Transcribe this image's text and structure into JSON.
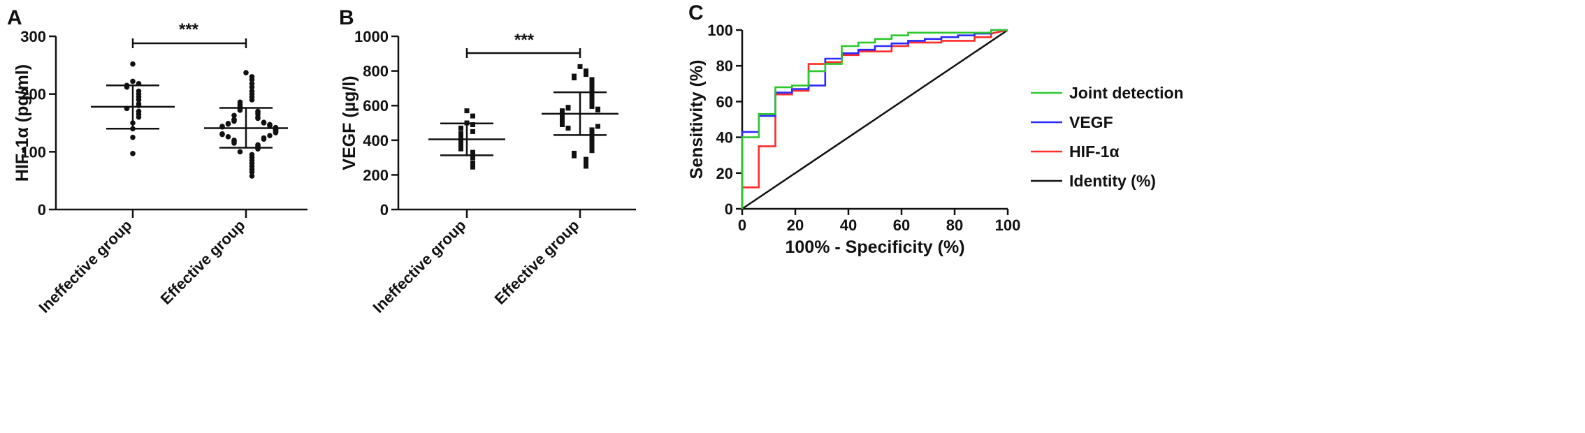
{
  "colors": {
    "axis": "#111111",
    "points": "#111111",
    "joint": "#2ec82e",
    "vegf": "#2a2aff",
    "hif": "#ff2a2a",
    "identity": "#111111"
  },
  "chart_data": [
    {
      "panel": "A",
      "type": "scatter",
      "ylabel": "HIF-1α (pg/ml)",
      "ylim": [
        0,
        300
      ],
      "yticks": [
        0,
        100,
        200,
        300
      ],
      "categories": [
        "Ineffective group",
        "Effective group"
      ],
      "marker": "circle",
      "significance": "***",
      "groups": [
        {
          "name": "Ineffective group",
          "mean": 178,
          "sd_low": 140,
          "sd_high": 215,
          "values": [
            252,
            222,
            218,
            215,
            212,
            205,
            200,
            195,
            190,
            183,
            180,
            175,
            170,
            165,
            160,
            150,
            140,
            125,
            97
          ]
        },
        {
          "name": "Effective group",
          "mean": 141,
          "sd_low": 107,
          "sd_high": 176,
          "values": [
            237,
            230,
            225,
            218,
            212,
            205,
            200,
            195,
            190,
            186,
            182,
            178,
            175,
            172,
            170,
            168,
            165,
            163,
            160,
            158,
            156,
            155,
            153,
            151,
            150,
            149,
            148,
            147,
            146,
            145,
            144,
            143,
            142,
            141,
            140,
            139,
            138,
            137,
            136,
            135,
            134,
            133,
            131,
            130,
            128,
            126,
            124,
            122,
            120,
            118,
            115,
            112,
            110,
            108,
            105,
            100,
            95,
            90,
            85,
            80,
            75,
            70,
            65,
            58
          ]
        }
      ]
    },
    {
      "panel": "B",
      "type": "scatter",
      "ylabel": "VEGF (µg/l)",
      "ylim": [
        0,
        1000
      ],
      "yticks": [
        0,
        200,
        400,
        600,
        800,
        1000
      ],
      "categories": [
        "Ineffective group",
        "Effective group"
      ],
      "marker": "square",
      "significance": "***",
      "groups": [
        {
          "name": "Ineffective group",
          "mean": 405,
          "sd_low": 313,
          "sd_high": 497,
          "values": [
            570,
            540,
            500,
            490,
            470,
            450,
            440,
            420,
            410,
            400,
            380,
            370,
            350,
            330,
            300,
            270,
            245
          ]
        },
        {
          "name": "Effective group",
          "mean": 553,
          "sd_low": 430,
          "sd_high": 677,
          "values": [
            825,
            800,
            780,
            770,
            760,
            750,
            740,
            730,
            720,
            710,
            700,
            690,
            680,
            670,
            660,
            650,
            640,
            630,
            620,
            610,
            600,
            595,
            590,
            585,
            580,
            575,
            570,
            565,
            560,
            555,
            550,
            545,
            540,
            535,
            530,
            525,
            520,
            515,
            510,
            505,
            500,
            495,
            490,
            480,
            470,
            460,
            450,
            440,
            430,
            420,
            410,
            400,
            390,
            380,
            370,
            360,
            350,
            340,
            325,
            310,
            290,
            270,
            250
          ]
        }
      ]
    },
    {
      "panel": "C",
      "type": "line",
      "xlabel": "100% - Specificity (%)",
      "ylabel": "Sensitivity (%)",
      "xlim": [
        0,
        100
      ],
      "ylim": [
        0,
        100
      ],
      "xticks": [
        0,
        20,
        40,
        60,
        80,
        100
      ],
      "yticks": [
        0,
        20,
        40,
        60,
        80,
        100
      ],
      "legend_position": "right",
      "series": [
        {
          "name": "Joint detection",
          "color": "#2ec82e",
          "x": [
            0,
            0,
            6.25,
            6.25,
            12.5,
            12.5,
            18.75,
            18.75,
            25,
            25,
            31.25,
            31.25,
            37.5,
            37.5,
            43.75,
            43.75,
            50,
            50,
            56.25,
            56.25,
            62.5,
            62.5,
            93.75,
            93.75,
            100
          ],
          "y": [
            0,
            40,
            40,
            53,
            53,
            68,
            68,
            69,
            69,
            77,
            77,
            81,
            81,
            91,
            91,
            93,
            93,
            95,
            95,
            97,
            97,
            98.5,
            98.5,
            100,
            100
          ]
        },
        {
          "name": "VEGF",
          "color": "#2a2aff",
          "x": [
            0,
            0,
            6.25,
            6.25,
            12.5,
            12.5,
            18.75,
            18.75,
            25,
            25,
            31.25,
            31.25,
            37.5,
            37.5,
            43.75,
            43.75,
            50,
            50,
            56.25,
            56.25,
            62.5,
            62.5,
            68.75,
            68.75,
            75,
            75,
            81.25,
            81.25,
            87.5,
            87.5,
            93.75,
            93.75,
            100
          ],
          "y": [
            0,
            43,
            43,
            52,
            52,
            65,
            65,
            67,
            67,
            69,
            69,
            84,
            84,
            87,
            87,
            89,
            89,
            91,
            91,
            92.5,
            92.5,
            94,
            94,
            95,
            95,
            96,
            96,
            97,
            97,
            98,
            98,
            100,
            100
          ]
        },
        {
          "name": "HIF-1α",
          "color": "#ff2a2a",
          "x": [
            0,
            0,
            6.25,
            6.25,
            12.5,
            12.5,
            18.75,
            18.75,
            25,
            25,
            31.25,
            31.25,
            37.5,
            37.5,
            43.75,
            43.75,
            56.25,
            56.25,
            62.5,
            62.5,
            75,
            75,
            87.5,
            87.5,
            93.75,
            93.75,
            100
          ],
          "y": [
            0,
            12,
            12,
            35,
            35,
            64,
            64,
            66,
            66,
            81,
            81,
            82,
            82,
            86,
            86,
            88,
            88,
            91,
            91,
            93,
            93,
            94,
            94,
            96,
            96,
            98,
            100
          ]
        },
        {
          "name": "Identity (%)",
          "color": "#111111",
          "x": [
            0,
            100
          ],
          "y": [
            0,
            100
          ]
        }
      ]
    }
  ]
}
